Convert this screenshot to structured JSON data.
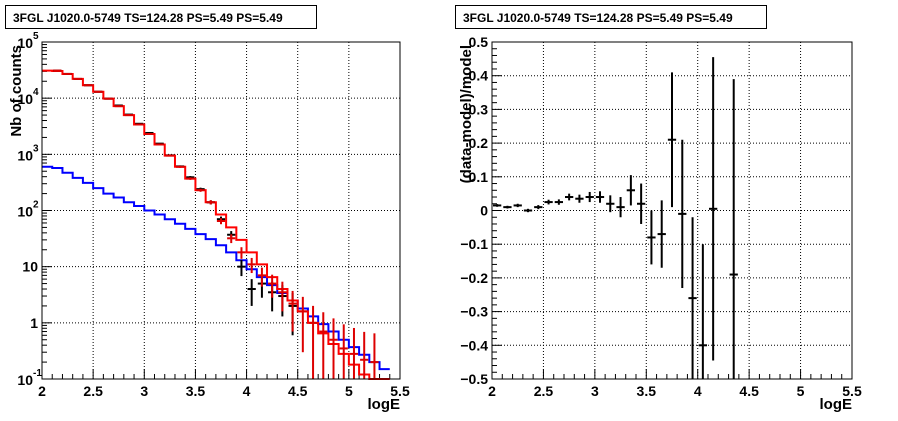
{
  "chart_data": [
    {
      "type": "step-histogram",
      "title": "3FGL J1020.0-5749 TS=124.28 PS=5.49 PS=5.49",
      "xlabel": "logE",
      "ylabel": "Nb of counts",
      "xlim": [
        2,
        5.5
      ],
      "ylim": [
        0.1,
        100000
      ],
      "yscale": "log",
      "grid": true,
      "x_tick_labels": [
        "2",
        "2.5",
        "3",
        "3.5",
        "4",
        "4.5",
        "5",
        "5.5"
      ],
      "y_tick_labels": [
        {
          "value": 0.1,
          "label": "10",
          "exp": "-1"
        },
        {
          "value": 1,
          "label": "1",
          "exp": ""
        },
        {
          "value": 10,
          "label": "10",
          "exp": ""
        },
        {
          "value": 100,
          "label": "10",
          "exp": "2"
        },
        {
          "value": 1000,
          "label": "10",
          "exp": "3"
        },
        {
          "value": 10000,
          "label": "10",
          "exp": "4"
        },
        {
          "value": 100000,
          "label": "10",
          "exp": "5"
        }
      ],
      "bin_edges": [
        2.0,
        2.1,
        2.2,
        2.3,
        2.4,
        2.5,
        2.6,
        2.7,
        2.8,
        2.9,
        3.0,
        3.1,
        3.2,
        3.3,
        3.4,
        3.5,
        3.6,
        3.7,
        3.8,
        3.9,
        4.0,
        4.1,
        4.2,
        4.3,
        4.4,
        4.5,
        4.6,
        4.7,
        4.8,
        4.9,
        5.0,
        5.1,
        5.2,
        5.3,
        5.4
      ],
      "series": [
        {
          "style": "step",
          "color": "#0000ff",
          "values": [
            600,
            570,
            470,
            380,
            310,
            250,
            200,
            170,
            140,
            120,
            100,
            85,
            70,
            58,
            47,
            38,
            31,
            24,
            18,
            13,
            9,
            6.5,
            4.7,
            3.4,
            2.5,
            1.8,
            1.3,
            0.95,
            0.7,
            0.5,
            0.37,
            0.27,
            0.2,
            0.15
          ]
        },
        {
          "style": "step",
          "color": "#ff0000",
          "values": [
            31000,
            30500,
            27000,
            22000,
            17000,
            13000,
            9800,
            7200,
            5000,
            3400,
            2300,
            1500,
            950,
            600,
            370,
            230,
            140,
            85,
            50,
            30,
            18,
            11,
            6.5,
            4,
            2.5,
            1.6,
            1.0,
            0.65,
            0.42,
            0.28,
            0.18,
            0.12,
            0.1,
            0.1
          ]
        },
        {
          "style": "errorbar",
          "color": "#000000",
          "x": [
            2.15,
            2.25,
            2.35,
            2.45,
            2.55,
            2.65,
            2.75,
            2.85,
            2.95,
            3.05,
            3.15,
            3.25,
            3.35,
            3.45,
            3.55,
            3.65,
            3.75,
            3.85,
            3.95,
            4.05,
            4.15,
            4.25,
            4.35,
            4.45
          ],
          "y": [
            31000,
            27000,
            22000,
            17000,
            13000,
            9800,
            7400,
            5100,
            3500,
            2400,
            1550,
            960,
            610,
            390,
            240,
            140,
            70,
            37,
            10,
            4,
            5,
            3.5,
            3,
            2
          ],
          "yerr": [
            200,
            180,
            150,
            130,
            115,
            100,
            85,
            70,
            60,
            50,
            40,
            31,
            25,
            20,
            15,
            12,
            8,
            6,
            3.2,
            2,
            2.2,
            1.9,
            1.7,
            1.4
          ]
        },
        {
          "style": "errorbar",
          "color": "#dd0000",
          "x": [
            2.15,
            2.25,
            2.35,
            2.45,
            2.55,
            2.65,
            2.75,
            2.85,
            2.95,
            3.05,
            3.15,
            3.25,
            3.35,
            3.45,
            3.55,
            3.65,
            3.75,
            3.85,
            3.95,
            4.05,
            4.15,
            4.25,
            4.35,
            4.45,
            4.55,
            4.65,
            4.75,
            4.85,
            4.95,
            5.05,
            5.15,
            5.25
          ],
          "y": [
            31000,
            27000,
            22000,
            17000,
            13000,
            9800,
            7200,
            5000,
            3400,
            2300,
            1500,
            950,
            600,
            370,
            230,
            140,
            65,
            32,
            18,
            11,
            7,
            5,
            3.5,
            2.2,
            1.6,
            1.0,
            0.7,
            0.5,
            0.35,
            0.28,
            0.22,
            0.2
          ],
          "yerr": [
            180,
            170,
            150,
            130,
            115,
            100,
            85,
            70,
            58,
            48,
            39,
            31,
            25,
            19,
            15,
            12,
            8,
            5.7,
            4.2,
            3.3,
            2.6,
            2.2,
            1.9,
            1.5,
            1.3,
            1.0,
            0.84,
            0.7,
            0.59,
            0.53,
            0.47,
            0.45
          ]
        }
      ]
    },
    {
      "type": "errorbar",
      "title": "3FGL J1020.0-5749 TS=124.28 PS=5.49 PS=5.49",
      "xlabel": "logE",
      "ylabel": "(data-model)/model",
      "xlim": [
        2,
        5.5
      ],
      "ylim": [
        -0.5,
        0.5
      ],
      "grid": true,
      "x_tick_labels": [
        "2",
        "2.5",
        "3",
        "3.5",
        "4",
        "4.5",
        "5",
        "5.5"
      ],
      "y_tick_labels": [
        "−0.5",
        "−0.4",
        "−0.3",
        "−0.2",
        "−0.1",
        "0",
        "0.1",
        "0.2",
        "0.3",
        "0.4",
        "0.5"
      ],
      "y_ticks": [
        -0.5,
        -0.4,
        -0.3,
        -0.2,
        -0.1,
        0,
        0.1,
        0.2,
        0.3,
        0.4,
        0.5
      ],
      "series": [
        {
          "color": "#000000",
          "x": [
            2.05,
            2.15,
            2.25,
            2.35,
            2.45,
            2.55,
            2.65,
            2.75,
            2.85,
            2.95,
            3.05,
            3.15,
            3.25,
            3.35,
            3.45,
            3.55,
            3.65,
            3.75,
            3.85,
            3.95,
            4.05,
            4.15,
            4.35
          ],
          "y": [
            0.015,
            0.01,
            0.015,
            0.0,
            0.01,
            0.025,
            0.025,
            0.04,
            0.035,
            0.04,
            0.04,
            0.02,
            0.01,
            0.06,
            0.02,
            -0.08,
            -0.07,
            0.21,
            -0.01,
            -0.26,
            -0.4,
            0.005,
            -0.19
          ],
          "yerr": [
            0.004,
            0.004,
            0.005,
            0.005,
            0.006,
            0.007,
            0.008,
            0.01,
            0.012,
            0.015,
            0.017,
            0.025,
            0.03,
            0.045,
            0.06,
            0.08,
            0.1,
            0.2,
            0.22,
            0.24,
            0.3,
            0.45,
            0.58
          ]
        }
      ]
    }
  ]
}
